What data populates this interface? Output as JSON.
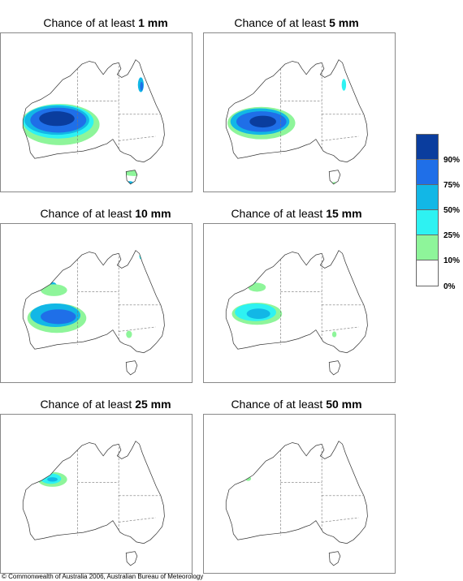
{
  "panels": [
    {
      "prefix": "Chance of at least",
      "amount": "1 mm"
    },
    {
      "prefix": "Chance of at least",
      "amount": "5 mm"
    },
    {
      "prefix": "Chance of at least",
      "amount": "10 mm"
    },
    {
      "prefix": "Chance of at least",
      "amount": "15 mm"
    },
    {
      "prefix": "Chance of at least",
      "amount": "25 mm"
    },
    {
      "prefix": "Chance of at least",
      "amount": "50 mm"
    }
  ],
  "legend": {
    "labels": [
      "90%",
      "75%",
      "50%",
      "25%",
      "10%",
      "0%"
    ],
    "colors": [
      "#0a3d9e",
      "#1f6fe8",
      "#12b7e6",
      "#2ef2f2",
      "#8ef59a",
      "#ffffff"
    ]
  },
  "copyright": "© Commonwealth of Australia 2006, Australian Bureau of Meteorology"
}
